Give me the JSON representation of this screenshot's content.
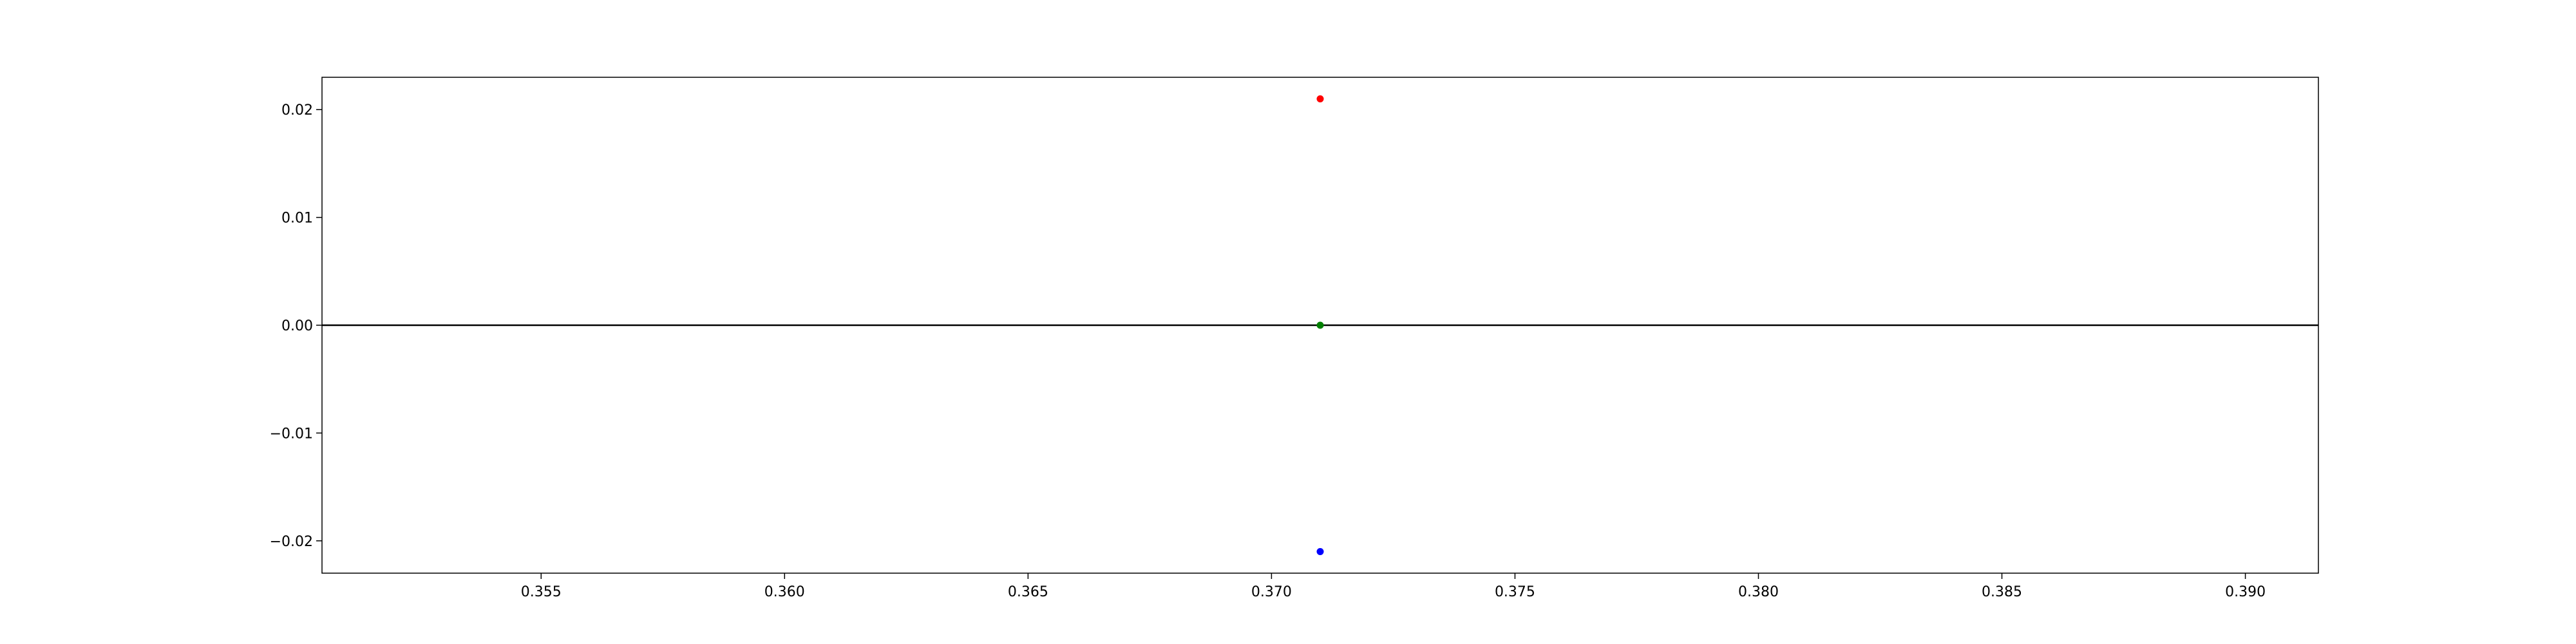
{
  "chart_data": {
    "type": "scatter",
    "title": "",
    "xlabel": "",
    "ylabel": "",
    "xlim": [
      0.3505,
      0.3915
    ],
    "ylim": [
      -0.023,
      0.023
    ],
    "grid": false,
    "reference_lines": [
      {
        "axis": "y",
        "value": 0.0,
        "color": "#000000"
      }
    ],
    "x_ticks": [
      0.355,
      0.36,
      0.365,
      0.37,
      0.375,
      0.38,
      0.385,
      0.39
    ],
    "x_tick_labels": [
      "0.355",
      "0.360",
      "0.365",
      "0.370",
      "0.375",
      "0.380",
      "0.385",
      "0.390"
    ],
    "y_ticks": [
      0.02,
      0.01,
      0.0,
      -0.01,
      -0.02
    ],
    "y_tick_labels": [
      "0.02",
      "0.01",
      "0.00",
      "−0.01",
      "−0.02"
    ],
    "series": [
      {
        "color": "#ff0000",
        "points": [
          {
            "x": 0.371,
            "y": 0.021
          }
        ]
      },
      {
        "color": "#008000",
        "points": [
          {
            "x": 0.371,
            "y": 0.0
          }
        ]
      },
      {
        "color": "#0000ff",
        "points": [
          {
            "x": 0.371,
            "y": -0.021
          }
        ]
      }
    ]
  }
}
